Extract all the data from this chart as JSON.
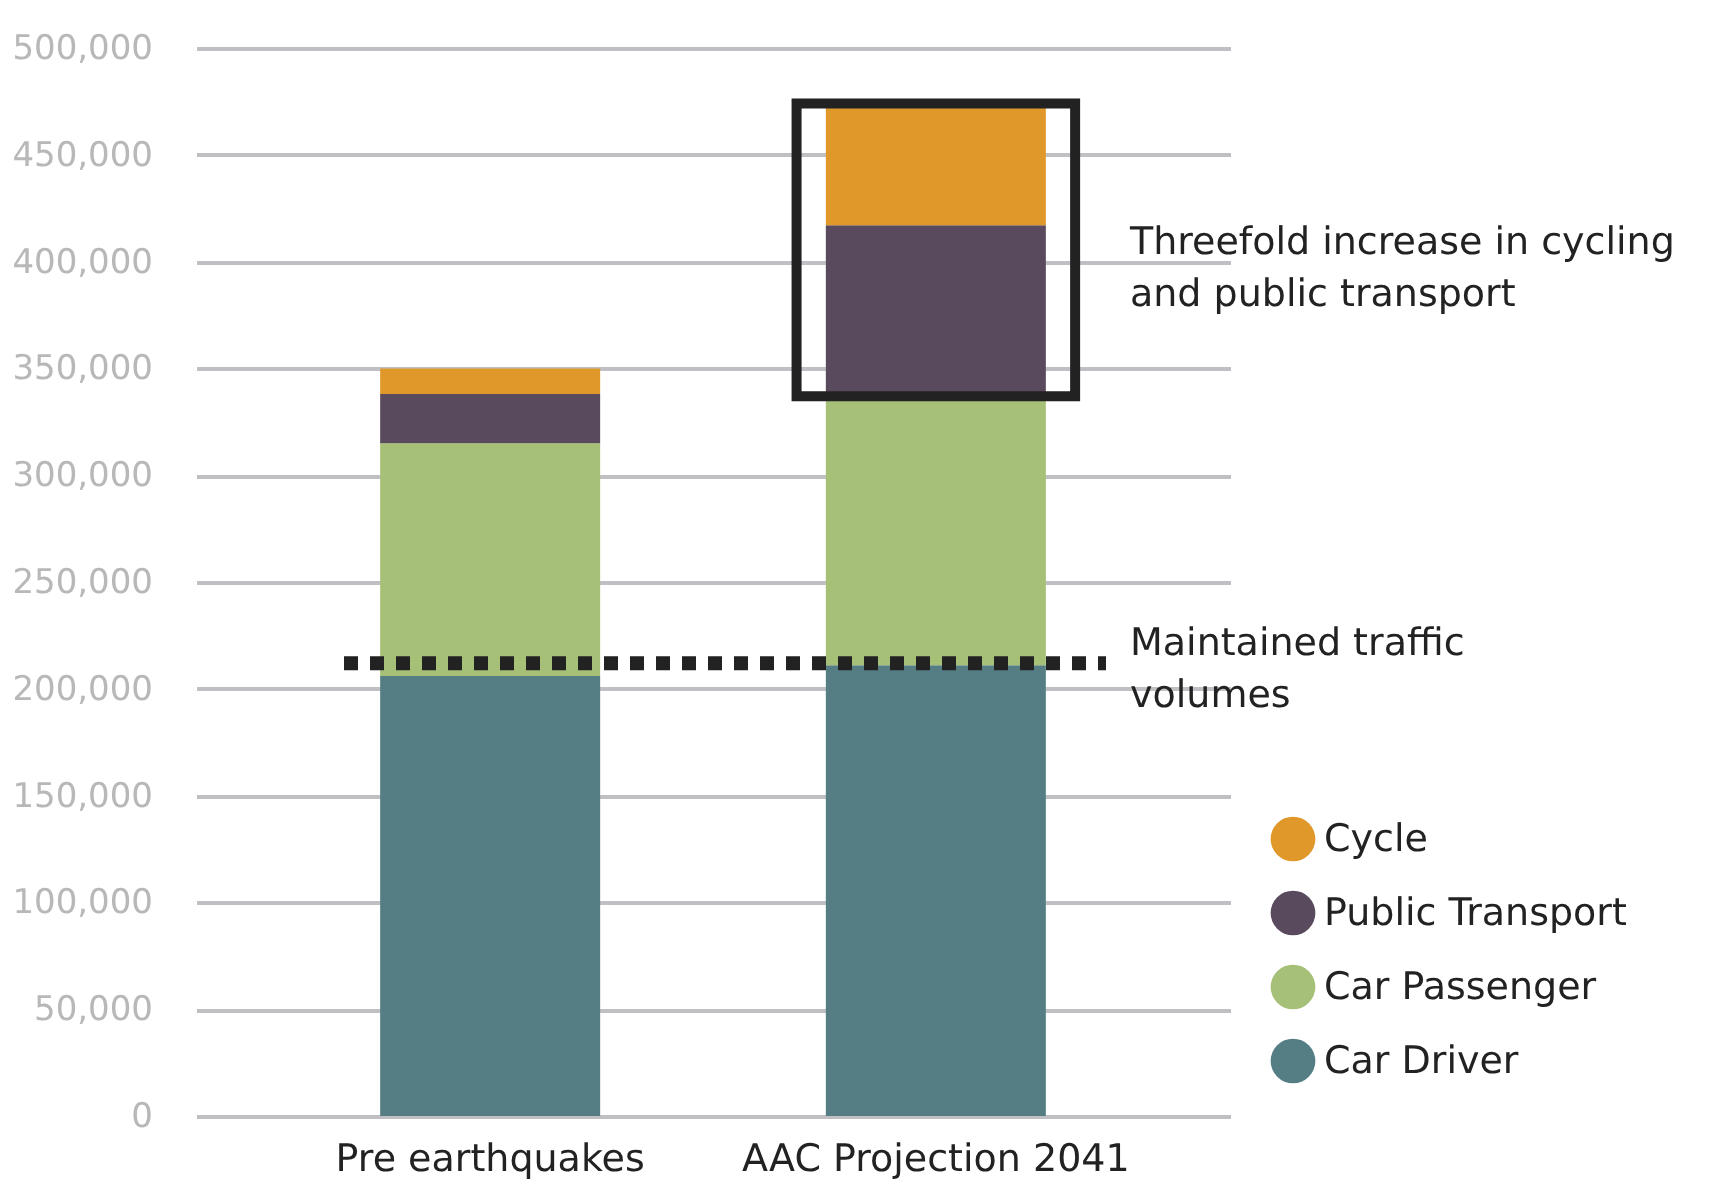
{
  "chart_data": {
    "type": "bar",
    "stacked": true,
    "categories": [
      "Pre earthquakes",
      "AAC Projection 2041"
    ],
    "series": [
      {
        "name": "Car Driver",
        "color": "#557e84",
        "values": [
          206000,
          211000
        ]
      },
      {
        "name": "Car Passenger",
        "color": "#a6c078",
        "values": [
          109000,
          126000
        ]
      },
      {
        "name": "Public Transport",
        "color": "#594a5e",
        "values": [
          23000,
          80000
        ]
      },
      {
        "name": "Cycle",
        "color": "#e0982b",
        "values": [
          12000,
          57000
        ]
      }
    ],
    "ylim": [
      0,
      500000
    ],
    "yticks": [
      0,
      {
        "value": 50000,
        "label": "50,000"
      },
      {
        "value": 100000,
        "label": "100,000"
      },
      {
        "value": 150000,
        "label": "150,000"
      },
      {
        "value": 200000,
        "label": "200,000"
      },
      {
        "value": 250000,
        "label": "250,000"
      },
      {
        "value": 300000,
        "label": "300,000"
      },
      {
        "value": 350000,
        "label": "350,000"
      },
      {
        "value": 400000,
        "label": "400,000"
      },
      {
        "value": 450000,
        "label": "450,000"
      },
      {
        "value": 500000,
        "label": "500,000"
      }
    ],
    "grid": "y",
    "legend": "bottom right",
    "ref_lines": [
      {
        "axis": "y",
        "value": 212000,
        "label": "Maintained traffic volumes",
        "color": "#222222",
        "line_style": "dotted"
      }
    ],
    "annotations": [
      "Threefold increase in cycling and public transport"
    ]
  }
}
